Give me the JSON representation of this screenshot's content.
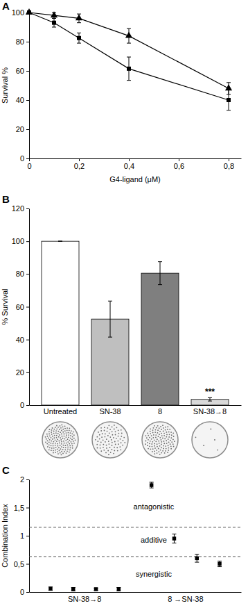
{
  "chart_data": [
    {
      "type": "line",
      "title": "A",
      "x_label": "G4-ligand (μM)",
      "y_label": "Survival %",
      "x": [
        0,
        0.1,
        0.2,
        0.4,
        0.8
      ],
      "series": [
        {
          "color": "#000000",
          "marker": "triangle",
          "values": [
            100,
            98,
            96,
            84,
            48
          ],
          "errors": [
            0,
            2,
            3,
            5,
            4
          ]
        },
        {
          "color": "#000000",
          "marker": "square",
          "values": [
            100,
            93,
            82.5,
            61.5,
            40
          ],
          "errors": [
            0,
            3,
            3.5,
            8,
            7
          ]
        }
      ],
      "xlim": [
        0,
        0.85
      ],
      "xticks": [
        0,
        {
          "value": 0.2,
          "label": "0,2"
        },
        {
          "value": 0.4,
          "label": "0,4"
        },
        {
          "value": 0.6,
          "label": "0,6"
        },
        {
          "value": 0.8,
          "label": "0,8"
        }
      ],
      "ylim": [
        0,
        100
      ],
      "yticks": [
        0,
        20,
        40,
        60,
        80,
        100
      ]
    },
    {
      "type": "bar",
      "title": "B",
      "y_label": "% Survival",
      "categories": [
        "Untreated",
        "SN-38",
        "8",
        "SN-38→8"
      ],
      "values": [
        100,
        52.5,
        80.5,
        3.5
      ],
      "errors": [
        0,
        11,
        7,
        1
      ],
      "colors": [
        "#ffffff",
        "#bfbfbf",
        "#7f7f7f",
        "#d9d9d9"
      ],
      "ylim": [
        0,
        120
      ],
      "yticks": [
        0,
        20,
        40,
        60,
        80,
        100,
        120
      ],
      "annotations": [
        {
          "text": "***",
          "x": "SN-38→8"
        }
      ]
    },
    {
      "type": "scatter",
      "title": "C",
      "y_label": "Combination Index",
      "categories": [
        "SN-38→8",
        "8 →SN-38"
      ],
      "values": [
        [
          0.06,
          0.05,
          0.05,
          0.05
        ],
        [
          1.9,
          0.95,
          0.6,
          0.5
        ]
      ],
      "errors": [
        [
          0.03,
          0.03,
          0.02,
          0.03
        ],
        [
          0.05,
          0.08,
          0.07,
          0.05
        ]
      ],
      "marker": "square",
      "color": "#000000",
      "ylim": [
        0,
        2
      ],
      "yticks": [
        0,
        {
          "value": 0.5,
          "label": "0,5"
        },
        1,
        {
          "value": 1.5,
          "label": "1,5"
        },
        2
      ],
      "reference_lines": [
        1.15,
        0.63
      ],
      "line_style": "dashed",
      "annotations": [
        {
          "text": "antagonistic",
          "y": 1.47
        },
        {
          "text": "additive",
          "y": 0.88
        },
        {
          "text": "synergistic",
          "y": 0.27
        }
      ]
    }
  ]
}
